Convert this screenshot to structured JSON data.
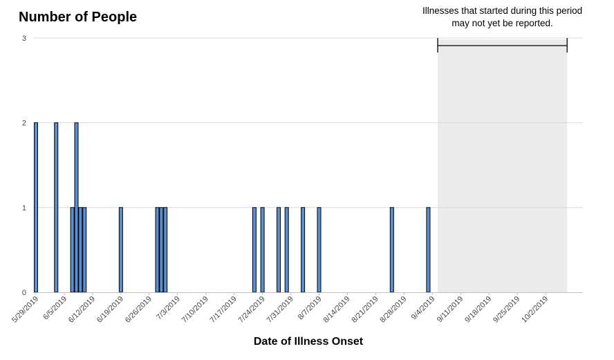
{
  "chart_data": {
    "type": "bar",
    "ylabel": "Number of People",
    "xlabel": "Date of Illness Onset",
    "ylim": [
      0,
      3
    ],
    "yticks": [
      0,
      1,
      2,
      3
    ],
    "grid": true,
    "x_range": [
      "2019-05-29",
      "2019-10-08"
    ],
    "xtick_labels": [
      "5/29/2019",
      "6/5/2019",
      "6/12/2019",
      "6/19/2019",
      "6/26/2019",
      "7/3/2019",
      "7/10/2019",
      "7/17/2019",
      "7/24/2019",
      "7/31/2019",
      "8/7/2019",
      "8/14/2019",
      "8/21/2019",
      "8/28/2019",
      "9/4/2019",
      "9/11/2019",
      "9/18/2019",
      "9/25/2019",
      "10/2/2019"
    ],
    "bar_color": "#5b8fd0",
    "series": [
      {
        "x": [
          "2019-05-29",
          "2019-06-03",
          "2019-06-07",
          "2019-06-08",
          "2019-06-09",
          "2019-06-10",
          "2019-06-19",
          "2019-06-28",
          "2019-06-29",
          "2019-06-30",
          "2019-07-22",
          "2019-07-24",
          "2019-07-28",
          "2019-07-30",
          "2019-08-03",
          "2019-08-07",
          "2019-08-25",
          "2019-09-03"
        ],
        "values": [
          2,
          2,
          1,
          2,
          1,
          1,
          1,
          1,
          1,
          1,
          1,
          1,
          1,
          1,
          1,
          1,
          1,
          1
        ]
      }
    ],
    "annotation": {
      "text_lines": [
        "Illnesses that started during this period",
        "may not yet be reported."
      ],
      "shaded_from": "2019-09-06",
      "shaded_to": "2019-10-08",
      "shade_color": "#ebebeb"
    }
  }
}
